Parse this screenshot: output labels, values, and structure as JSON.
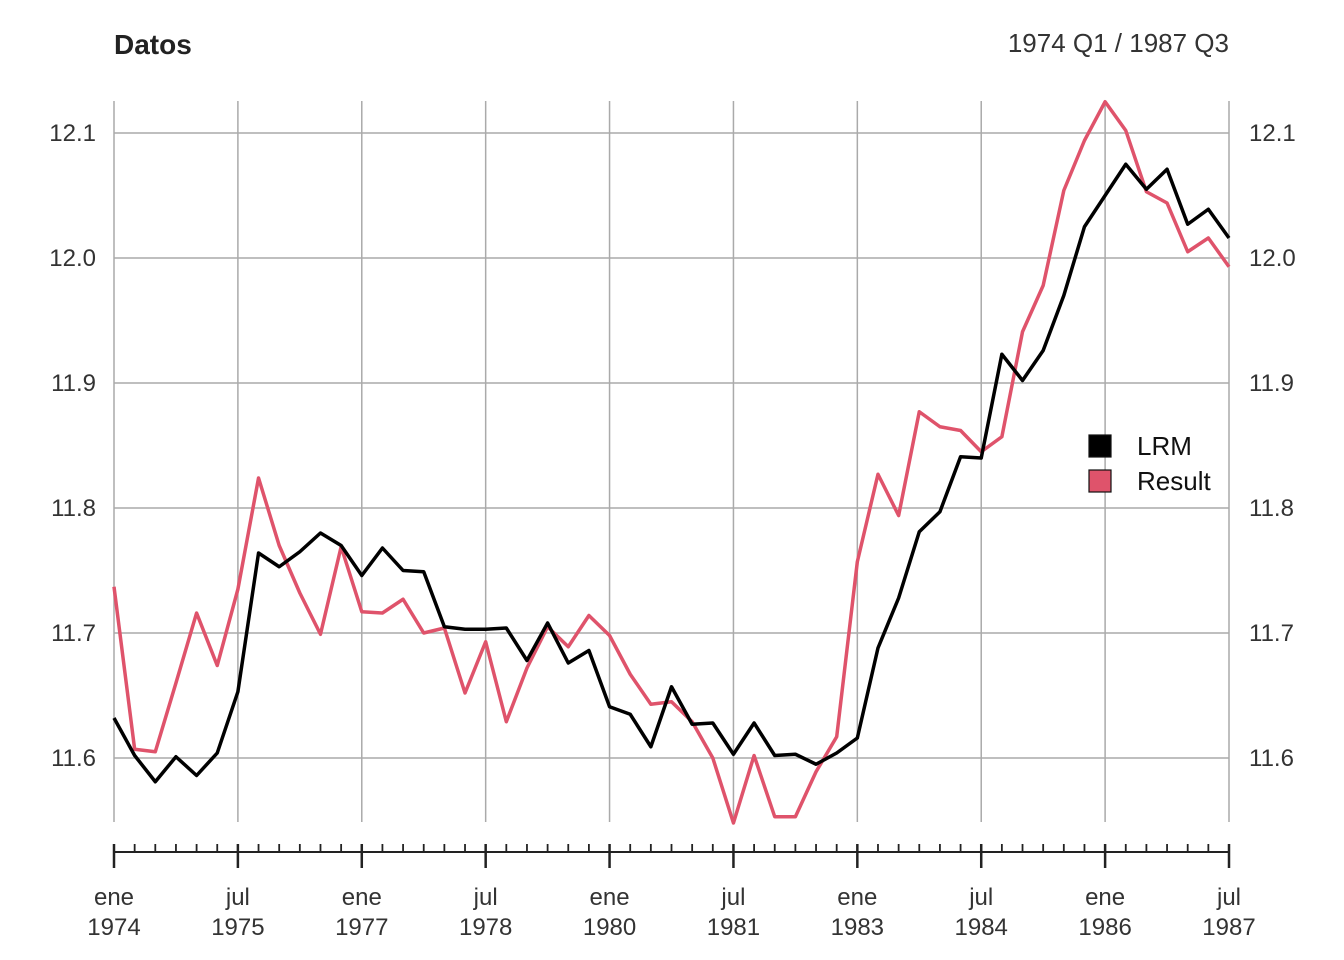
{
  "chart_data": {
    "type": "line",
    "title": "Datos",
    "subtitle": "1974 Q1 / 1987 Q3",
    "ylim": [
      11.54,
      12.13
    ],
    "yticks": [
      "11.6",
      "11.7",
      "11.8",
      "11.9",
      "12.0",
      "12.1"
    ],
    "ytick_values": [
      11.6,
      11.7,
      11.8,
      11.9,
      12.0,
      12.1
    ],
    "xlim": [
      0,
      54
    ],
    "xticks": [
      {
        "month": "ene",
        "year": "1974",
        "q": 0
      },
      {
        "month": "jul",
        "year": "1975",
        "q": 6
      },
      {
        "month": "ene",
        "year": "1977",
        "q": 12
      },
      {
        "month": "jul",
        "year": "1978",
        "q": 18
      },
      {
        "month": "ene",
        "year": "1980",
        "q": 24
      },
      {
        "month": "jul",
        "year": "1981",
        "q": 30
      },
      {
        "month": "ene",
        "year": "1983",
        "q": 36
      },
      {
        "month": "jul",
        "year": "1984",
        "q": 42
      },
      {
        "month": "ene",
        "year": "1986",
        "q": 48
      },
      {
        "month": "jul",
        "year": "1987",
        "q": 54
      }
    ],
    "x_start": "1974 Q1",
    "frequency": "quarterly",
    "grid": true,
    "legend_position": "right",
    "series": [
      {
        "name": "LRM",
        "color": "#000000",
        "values": [
          11.632,
          11.602,
          11.581,
          11.601,
          11.586,
          11.604,
          11.653,
          11.764,
          11.753,
          11.765,
          11.78,
          11.77,
          11.746,
          11.768,
          11.75,
          11.749,
          11.705,
          11.703,
          11.703,
          11.704,
          11.678,
          11.708,
          11.676,
          11.686,
          11.641,
          11.635,
          11.609,
          11.657,
          11.627,
          11.628,
          11.603,
          11.628,
          11.602,
          11.603,
          11.595,
          11.604,
          11.616,
          11.688,
          11.728,
          11.781,
          11.797,
          11.841,
          11.84,
          11.923,
          11.902,
          11.926,
          11.97,
          12.025,
          12.05,
          12.075,
          12.055,
          12.071,
          12.027,
          12.039,
          12.016
        ]
      },
      {
        "name": "Result",
        "color": "#df536b",
        "values": [
          11.737,
          11.607,
          11.605,
          11.66,
          11.716,
          11.674,
          11.735,
          11.824,
          11.77,
          11.732,
          11.699,
          11.769,
          11.717,
          11.716,
          11.727,
          11.7,
          11.704,
          11.652,
          11.693,
          11.629,
          11.672,
          11.705,
          11.689,
          11.714,
          11.698,
          11.667,
          11.643,
          11.645,
          11.629,
          11.6,
          11.548,
          11.602,
          11.553,
          11.553,
          11.589,
          11.617,
          11.757,
          11.827,
          11.794,
          11.877,
          11.865,
          11.862,
          11.845,
          11.857,
          11.941,
          11.978,
          12.054,
          12.094,
          12.125,
          12.102,
          12.053,
          12.044,
          12.005,
          12.016,
          11.993
        ]
      }
    ]
  }
}
